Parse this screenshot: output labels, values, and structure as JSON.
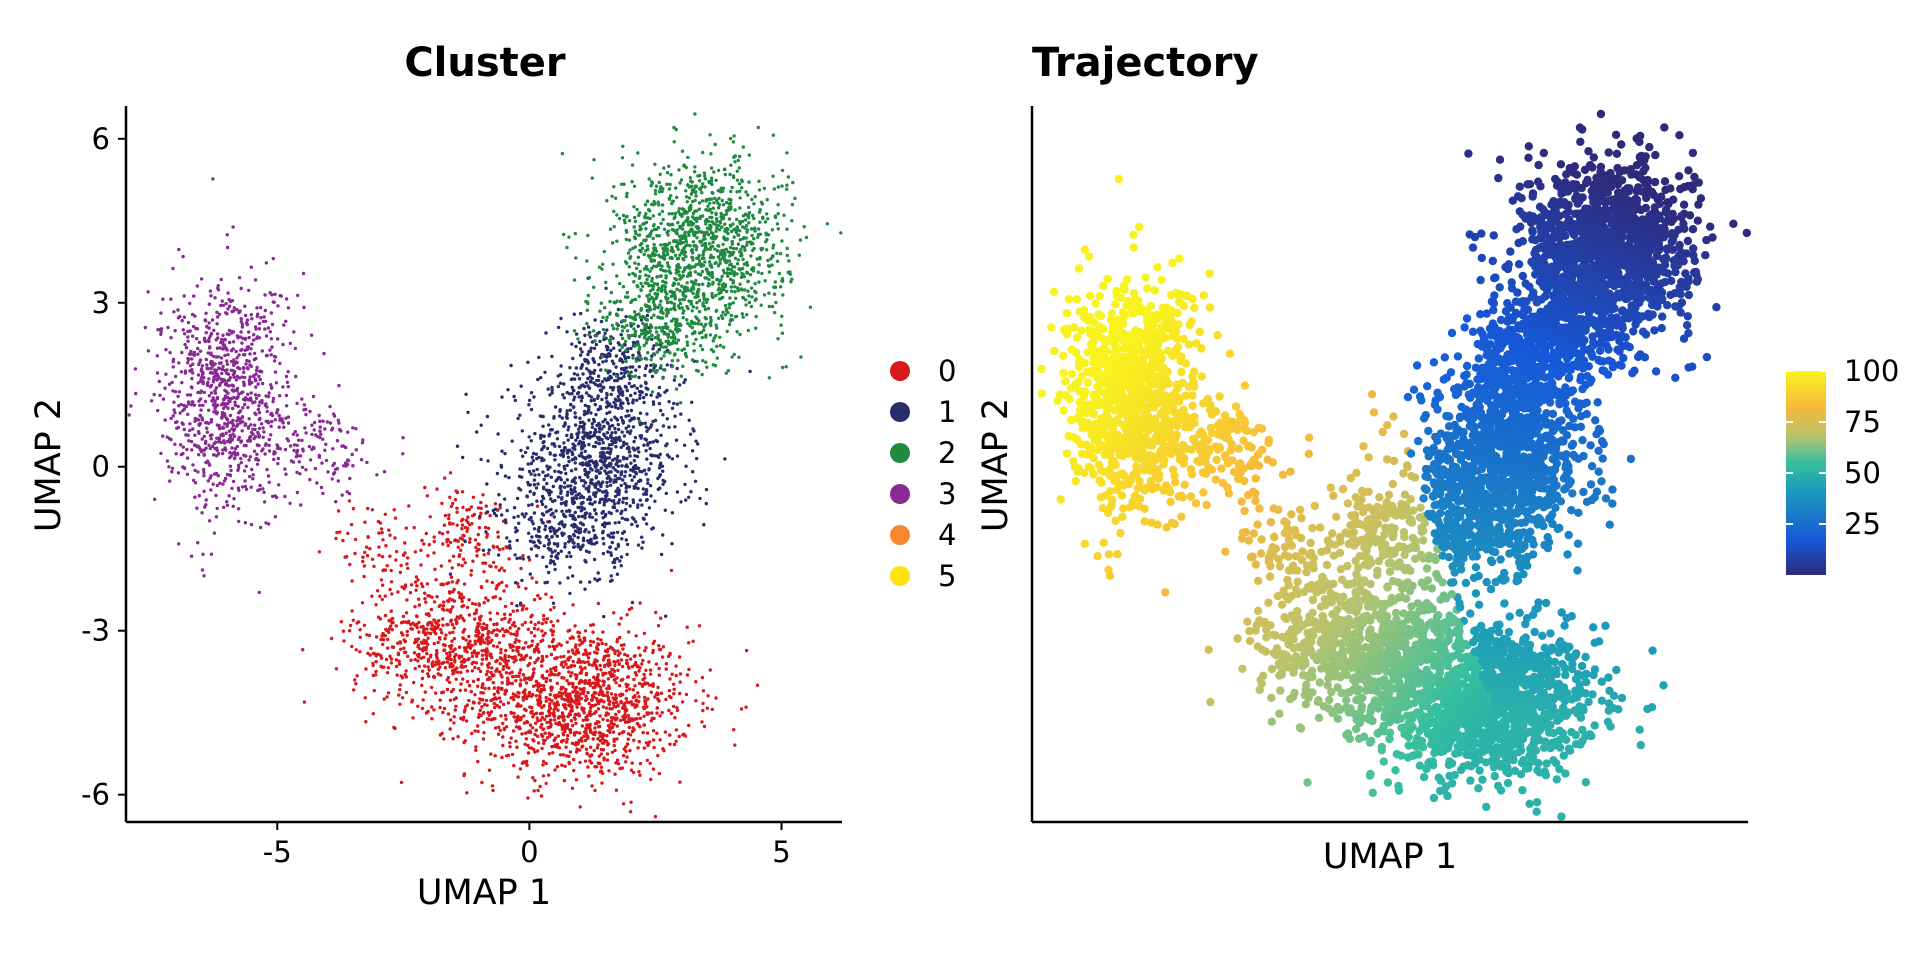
{
  "chart_data": [
    {
      "type": "scatter",
      "title": "Cluster",
      "xlabel": "UMAP 1",
      "ylabel": "UMAP 2",
      "xlim": [
        -8.0,
        6.2
      ],
      "ylim": [
        -6.5,
        6.6
      ],
      "x_ticks": [
        {
          "value": -5,
          "label": "-5"
        },
        {
          "value": 0,
          "label": "0"
        },
        {
          "value": 5,
          "label": "5"
        }
      ],
      "y_ticks": [
        {
          "value": -6,
          "label": "-6"
        },
        {
          "value": -3,
          "label": "-3"
        },
        {
          "value": 0,
          "label": "0"
        },
        {
          "value": 3,
          "label": "3"
        },
        {
          "value": 6,
          "label": "6"
        }
      ],
      "legend_position": "right",
      "grid": false,
      "series": [
        {
          "name": "0",
          "color": "#D7191C",
          "clusters": [
            {
              "cx": 1.0,
              "cy": -4.3,
              "sx": 1.1,
              "sy": 0.7,
              "n": 1300
            },
            {
              "cx": -1.5,
              "cy": -3.2,
              "sx": 1.0,
              "sy": 0.6,
              "n": 700
            },
            {
              "cx": -1.3,
              "cy": -1.3,
              "sx": 0.6,
              "sy": 0.5,
              "n": 160
            },
            {
              "cx": -3.0,
              "cy": -1.4,
              "sx": 0.5,
              "sy": 0.4,
              "n": 60
            }
          ]
        },
        {
          "name": "1",
          "color": "#282E6C",
          "clusters": [
            {
              "cx": 1.3,
              "cy": 0.0,
              "sx": 0.85,
              "sy": 0.8,
              "n": 1000
            },
            {
              "cx": 1.7,
              "cy": 1.8,
              "sx": 0.6,
              "sy": 0.55,
              "n": 300
            },
            {
              "cx": 0.6,
              "cy": -1.3,
              "sx": 0.6,
              "sy": 0.45,
              "n": 180
            }
          ]
        },
        {
          "name": "2",
          "color": "#1F8A40",
          "clusters": [
            {
              "cx": 3.4,
              "cy": 4.0,
              "sx": 0.85,
              "sy": 0.8,
              "n": 1200
            },
            {
              "cx": 2.6,
              "cy": 2.6,
              "sx": 0.6,
              "sy": 0.5,
              "n": 320
            }
          ]
        },
        {
          "name": "3",
          "color": "#882A93",
          "clusters": [
            {
              "cx": -6.0,
              "cy": 1.3,
              "sx": 0.65,
              "sy": 1.05,
              "n": 950
            },
            {
              "cx": -4.1,
              "cy": 0.3,
              "sx": 0.5,
              "sy": 0.45,
              "n": 120
            }
          ]
        },
        {
          "name": "4",
          "color": "#F7872F",
          "clusters": []
        },
        {
          "name": "5",
          "color": "#FDE40A",
          "clusters": []
        }
      ]
    },
    {
      "type": "scatter",
      "title": "Trajectory",
      "xlabel": "UMAP 1",
      "ylabel": "UMAP 2",
      "xlim": [
        -8.0,
        6.2
      ],
      "ylim": [
        -6.5,
        6.6
      ],
      "color_by": "pseudotime",
      "colorbar": {
        "min": 0,
        "max": 100,
        "ticks": [
          {
            "value": 25,
            "label": "25"
          },
          {
            "value": 50,
            "label": "50"
          },
          {
            "value": 75,
            "label": "75"
          },
          {
            "value": 100,
            "label": "100"
          }
        ],
        "colors": [
          "#2E2A7C",
          "#1658D8",
          "#1E9CB8",
          "#35BFA0",
          "#B9C36D",
          "#F6B93B",
          "#F8F21E"
        ]
      },
      "grid": false
    }
  ]
}
